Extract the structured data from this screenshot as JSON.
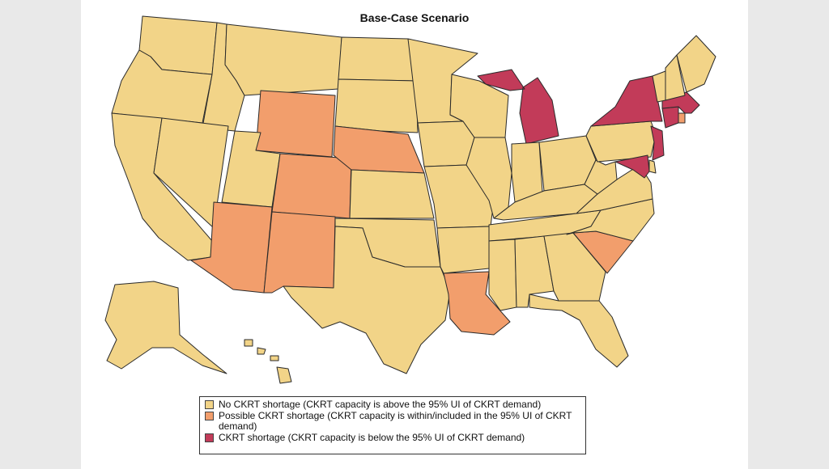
{
  "title": "Base-Case Scenario",
  "colors": {
    "none": "#f2d488",
    "possible": "#f29e6c",
    "shortage": "#c23b59",
    "border": "#2a2a2a",
    "background": "#e9e9e9"
  },
  "legend": [
    {
      "key": "none",
      "label": "No CKRT shortage (CKRT capacity is above the 95% UI of CKRT demand)"
    },
    {
      "key": "possible",
      "label": "Possible CKRT shortage (CKRT capacity is within/included in the 95% UI of CKRT demand)"
    },
    {
      "key": "shortage",
      "label": "CKRT shortage (CKRT capacity is below the 95% UI of CKRT demand)"
    }
  ],
  "states": {
    "WA": "none",
    "OR": "none",
    "CA": "none",
    "ID": "none",
    "NV": "none",
    "MT": "none",
    "WY": "possible",
    "UT": "none",
    "AZ": "possible",
    "CO": "possible",
    "NM": "possible",
    "ND": "none",
    "SD": "none",
    "NE": "possible",
    "KS": "none",
    "OK": "none",
    "TX": "none",
    "MN": "none",
    "IA": "none",
    "MO": "none",
    "AR": "none",
    "LA": "possible",
    "WI": "none",
    "IL": "none",
    "MI": "shortage",
    "IN": "none",
    "OH": "none",
    "KY": "none",
    "TN": "none",
    "MS": "none",
    "AL": "none",
    "GA": "none",
    "FL": "none",
    "SC": "possible",
    "NC": "none",
    "VA": "none",
    "WV": "none",
    "PA": "none",
    "NY": "shortage",
    "NJ": "shortage",
    "DE": "none",
    "MD": "shortage",
    "CT": "shortage",
    "RI": "possible",
    "MA": "shortage",
    "VT": "none",
    "NH": "none",
    "ME": "none",
    "AK": "none",
    "HI": "none"
  }
}
